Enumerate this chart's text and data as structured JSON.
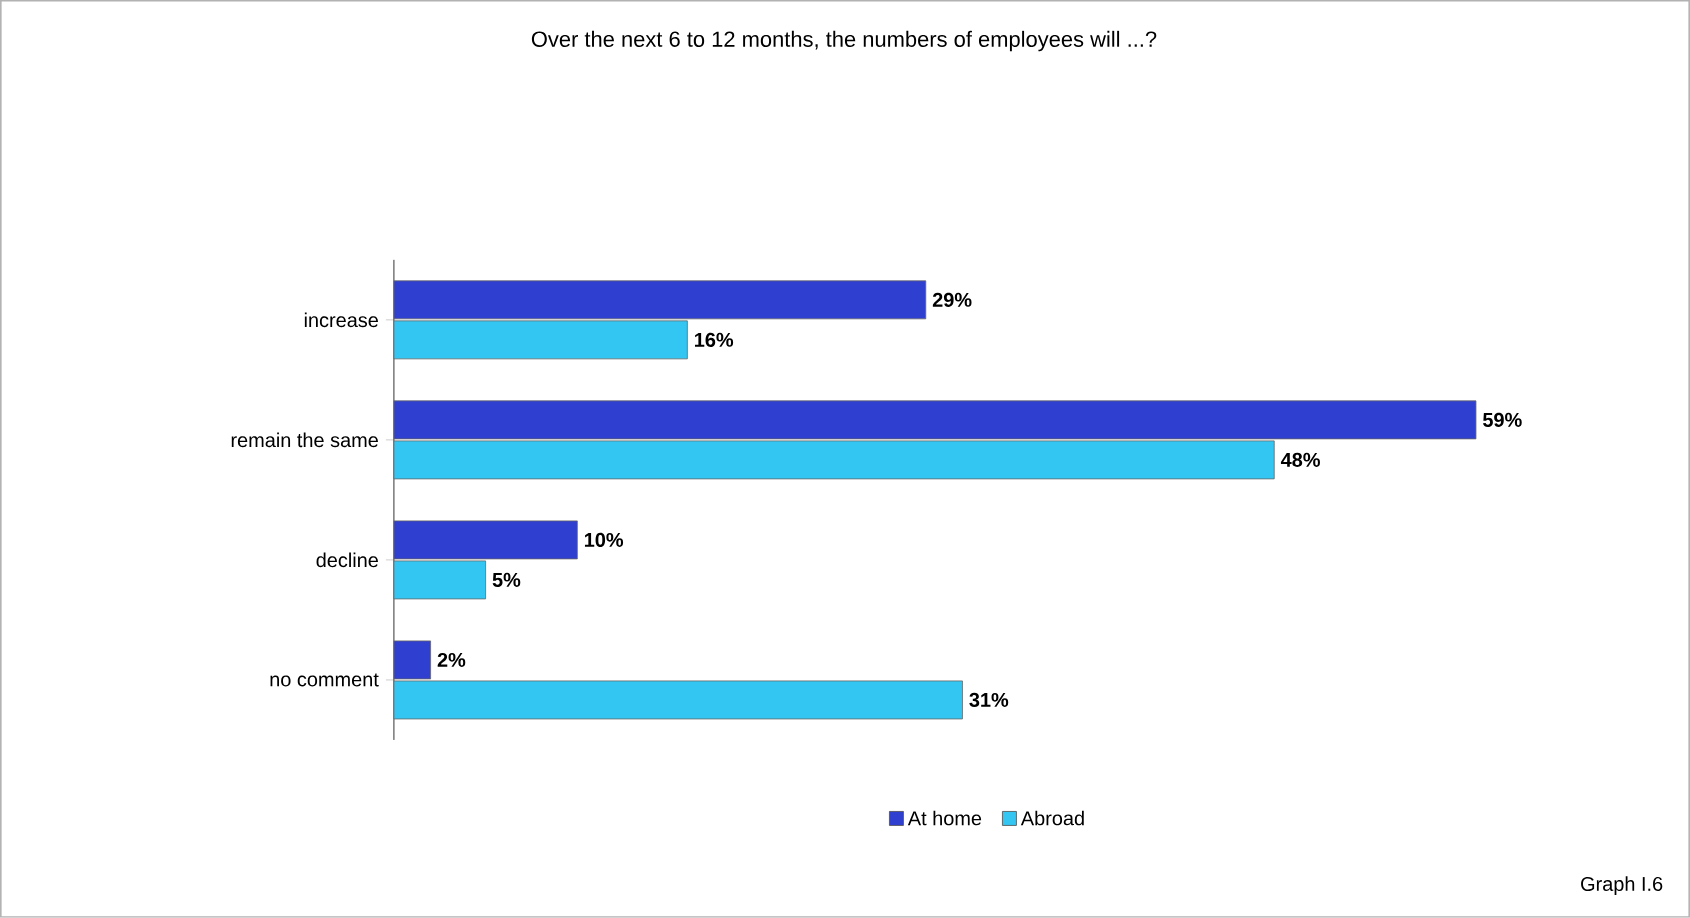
{
  "chart_data": {
    "type": "bar",
    "orientation": "horizontal",
    "title": "Over the next 6 to 12 months, the numbers of employees will ...?",
    "categories": [
      "increase",
      "remain the same",
      "decline",
      "no comment"
    ],
    "series": [
      {
        "name": "At home",
        "color": "#2f3fd0",
        "values": [
          29,
          59,
          10,
          2
        ],
        "value_labels": [
          "29%",
          "59%",
          "10%",
          "2%"
        ]
      },
      {
        "name": "Abroad",
        "color": "#33c6f2",
        "values": [
          16,
          48,
          5,
          31
        ],
        "value_labels": [
          "16%",
          "48%",
          "5%",
          "31%"
        ]
      }
    ],
    "tick_labels": "y",
    "legend": "bottom",
    "annotations": [
      "Graph I.6"
    ]
  }
}
